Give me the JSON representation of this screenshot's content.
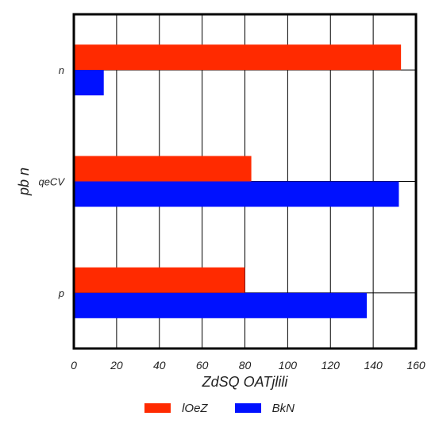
{
  "chart_data": {
    "type": "bar",
    "orientation": "horizontal",
    "title": "",
    "xlabel": "ZdSQ OATjlili",
    "ylabel": "pb  n",
    "categories": [
      "p",
      "qeCV",
      "n"
    ],
    "series": [
      {
        "name": "lOeZ",
        "color": "#ff2a00",
        "values": [
          80,
          83,
          153
        ]
      },
      {
        "name": "BkN",
        "color": "#0011ff",
        "values": [
          137,
          152,
          14
        ]
      }
    ],
    "xlim": [
      0,
      160
    ],
    "xticks": [
      0,
      20,
      40,
      60,
      80,
      100,
      120,
      140,
      160
    ],
    "grid": true,
    "legend_placement": "bottom-center"
  }
}
